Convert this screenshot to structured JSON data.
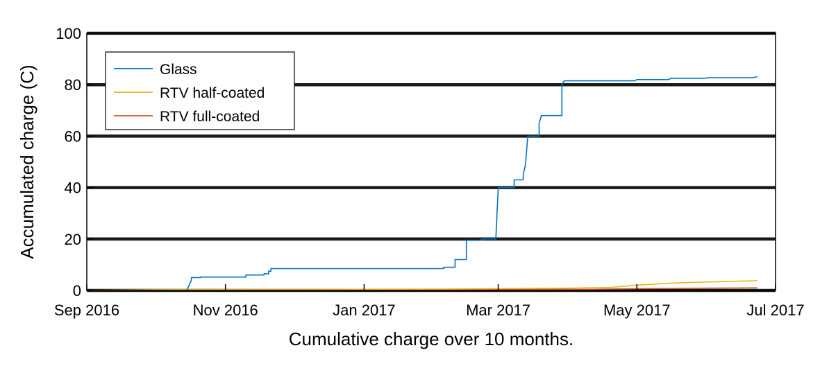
{
  "chart_data": {
    "type": "line",
    "title": "",
    "xlabel": "Cumulative charge over 10 months.",
    "ylabel": "Accumulated charge (C)",
    "xlim": [
      "2016-09-01",
      "2017-07-01"
    ],
    "ylim": [
      0,
      100
    ],
    "grid": "horizontal",
    "legend_position": "top-left",
    "x_ticks": [
      {
        "date": "2016-09-01",
        "label": "Sep 2016"
      },
      {
        "date": "2016-11-01",
        "label": "Nov 2016"
      },
      {
        "date": "2017-01-01",
        "label": "Jan 2017"
      },
      {
        "date": "2017-03-01",
        "label": "Mar 2017"
      },
      {
        "date": "2017-05-01",
        "label": "May 2017"
      },
      {
        "date": "2017-07-01",
        "label": "Jul 2017"
      }
    ],
    "y_ticks": [
      {
        "value": 0,
        "label": "0"
      },
      {
        "value": 20,
        "label": "20"
      },
      {
        "value": 40,
        "label": "40"
      },
      {
        "value": 60,
        "label": "60"
      },
      {
        "value": 80,
        "label": "80"
      },
      {
        "value": 100,
        "label": "100"
      }
    ],
    "series": [
      {
        "name": "Glass",
        "color": "#0072BD",
        "x": [
          "2016-09-15",
          "2016-10-15",
          "2016-10-17",
          "2016-10-17",
          "2016-10-21",
          "2016-10-21",
          "2016-11-10",
          "2016-11-10",
          "2016-11-18",
          "2016-11-18",
          "2016-11-20",
          "2016-11-20",
          "2016-11-21",
          "2016-11-21",
          "2016-12-01",
          "2017-02-05",
          "2017-02-05",
          "2017-02-10",
          "2017-02-10",
          "2017-02-15",
          "2017-02-15",
          "2017-02-21",
          "2017-02-22",
          "2017-02-28",
          "2017-02-28",
          "2017-03-01",
          "2017-03-02",
          "2017-03-08",
          "2017-03-08",
          "2017-03-12",
          "2017-03-12",
          "2017-03-13",
          "2017-03-14",
          "2017-03-19",
          "2017-03-19",
          "2017-03-20",
          "2017-03-23",
          "2017-03-29",
          "2017-03-29",
          "2017-03-30",
          "2017-04-30",
          "2017-05-01",
          "2017-05-15",
          "2017-05-16",
          "2017-05-31",
          "2017-06-01",
          "2017-06-21",
          "2017-06-22",
          "2017-06-23"
        ],
        "values": [
          0,
          0,
          4,
          5,
          5,
          5.2,
          5.2,
          6,
          6,
          6.5,
          6.5,
          7.5,
          7.5,
          8.5,
          8.5,
          8.5,
          9,
          9,
          12,
          12,
          19.5,
          19.5,
          20,
          20,
          21,
          40,
          40,
          40,
          43,
          43,
          45,
          49,
          60,
          60,
          65,
          68,
          68,
          68,
          80,
          81.5,
          81.5,
          82,
          82,
          82.5,
          82.5,
          82.7,
          82.7,
          83,
          83
        ]
      },
      {
        "name": "RTV half-coated",
        "color": "#EDB120",
        "x": [
          "2016-09-01",
          "2016-09-30",
          "2016-12-01",
          "2017-02-01",
          "2017-03-01",
          "2017-04-01",
          "2017-04-20",
          "2017-04-30",
          "2017-05-15",
          "2017-06-01",
          "2017-06-23"
        ],
        "values": [
          0,
          0.3,
          0.4,
          0.5,
          0.7,
          0.9,
          1.2,
          2.0,
          2.8,
          3.3,
          3.8
        ]
      },
      {
        "name": "RTV full-coated",
        "color": "#D95319",
        "x": [
          "2016-09-01",
          "2016-09-30",
          "2016-12-01",
          "2017-02-01",
          "2017-03-01",
          "2017-04-01",
          "2017-05-01",
          "2017-06-01",
          "2017-06-23"
        ],
        "values": [
          0,
          0.15,
          0.2,
          0.25,
          0.3,
          0.35,
          0.7,
          0.9,
          1.0
        ]
      }
    ]
  }
}
